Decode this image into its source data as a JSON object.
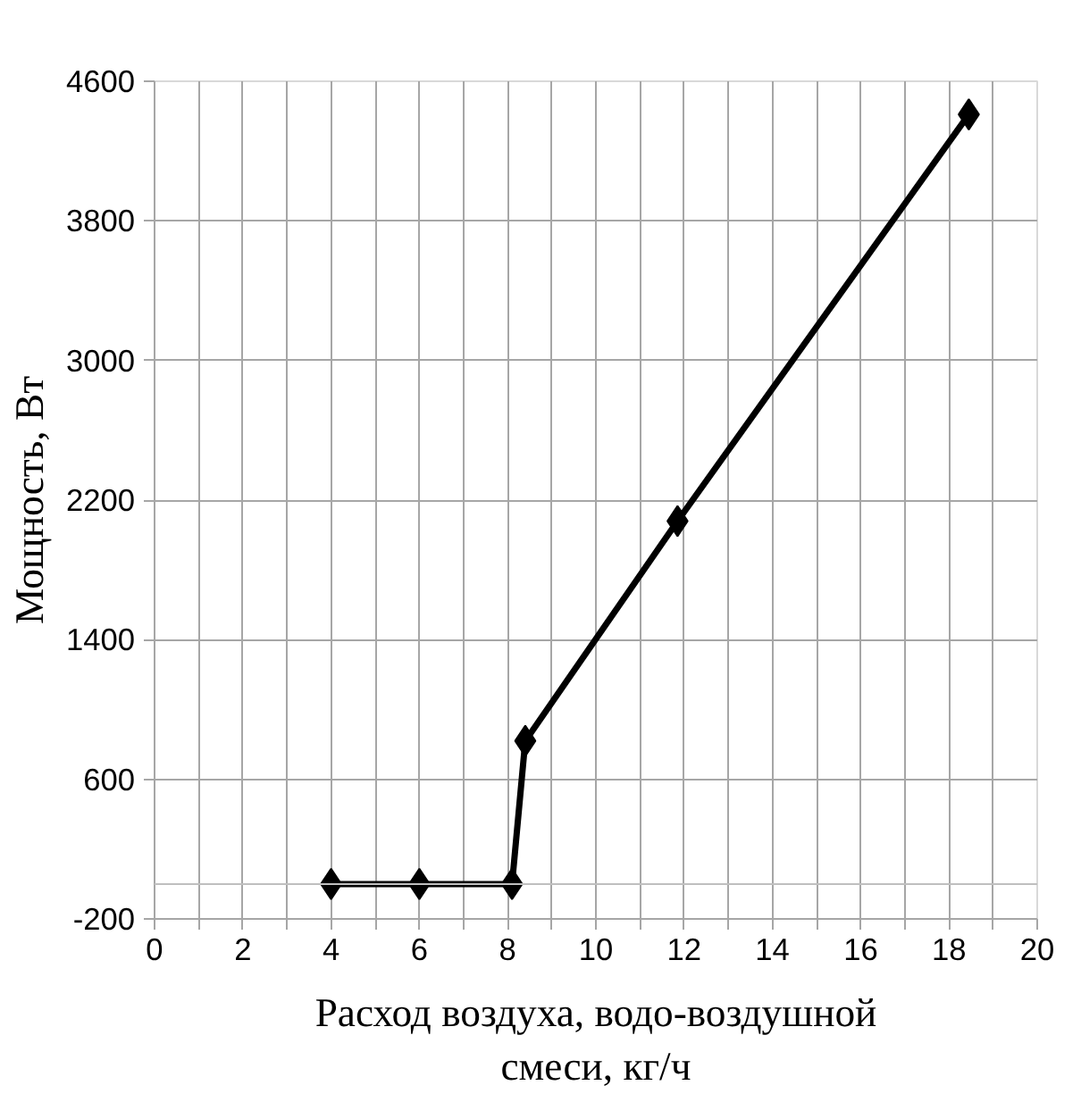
{
  "chart_data": {
    "type": "line",
    "xlabel": "Расход воздуха, водо-воздушной смеси, кг/ч",
    "ylabel": "Мощность, Вт",
    "x": [
      4,
      6,
      8.1,
      8.4,
      11.85,
      18.45
    ],
    "series": [
      {
        "color": "#000000",
        "values": [
          0,
          0,
          0,
          820,
          2080,
          4410
        ]
      }
    ],
    "xlim": [
      0,
      20
    ],
    "ylim": [
      -200,
      4600
    ],
    "xticks": [
      0,
      {
        "value": 1,
        "label": null
      },
      2,
      {
        "value": 3,
        "label": null
      },
      4,
      {
        "value": 5,
        "label": null
      },
      6,
      {
        "value": 7,
        "label": null
      },
      8,
      {
        "value": 9,
        "label": null
      },
      10,
      {
        "value": 11,
        "label": null
      },
      12,
      {
        "value": 13,
        "label": null
      },
      14,
      {
        "value": 15,
        "label": null
      },
      16,
      {
        "value": 17,
        "label": null
      },
      18,
      {
        "value": 19,
        "label": null
      },
      20
    ],
    "yticks": [
      -200,
      600,
      1400,
      2200,
      3000,
      3800,
      4600
    ],
    "ref_lines": [
      {
        "axis": "y",
        "value": 0,
        "color": "#bfbfbf"
      }
    ],
    "grid": true,
    "marker": "diamond",
    "line_style": "solid"
  }
}
